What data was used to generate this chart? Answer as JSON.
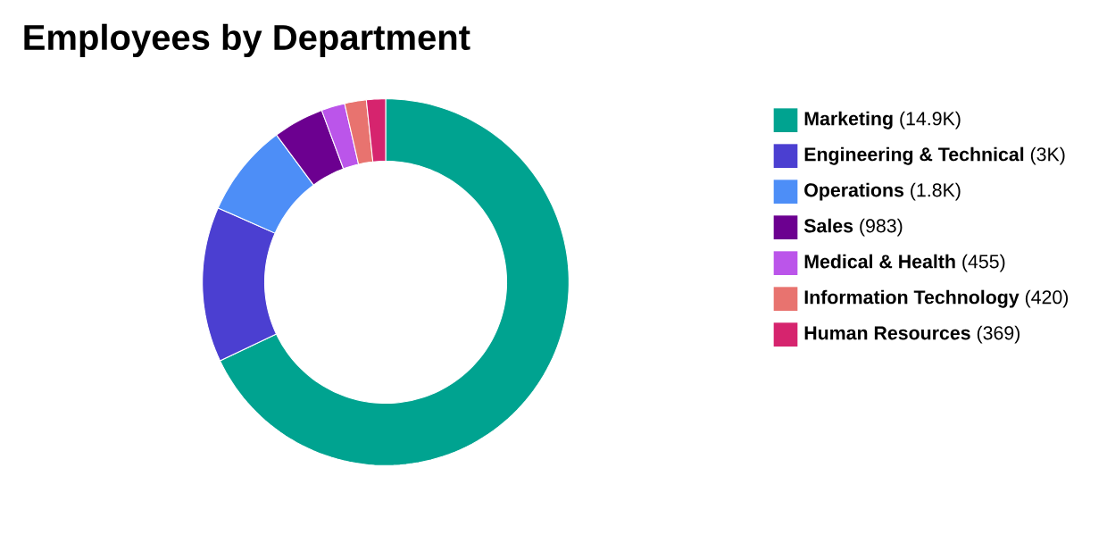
{
  "chart_data": {
    "type": "donut",
    "title": "Employees by Department",
    "categories": [
      "Marketing",
      "Engineering & Technical",
      "Operations",
      "Sales",
      "Medical & Health",
      "Information Technology",
      "Human Resources"
    ],
    "values": [
      14900,
      3000,
      1800,
      983,
      455,
      420,
      369
    ],
    "value_labels": [
      "(14.9K)",
      "(3K)",
      "(1.8K)",
      "(983)",
      "(455)",
      "(420)",
      "(369)"
    ],
    "colors": [
      "#00a390",
      "#4b3fd1",
      "#4d8ef7",
      "#6c0090",
      "#bb55ea",
      "#e8736f",
      "#d6246e"
    ],
    "legend": "right"
  }
}
